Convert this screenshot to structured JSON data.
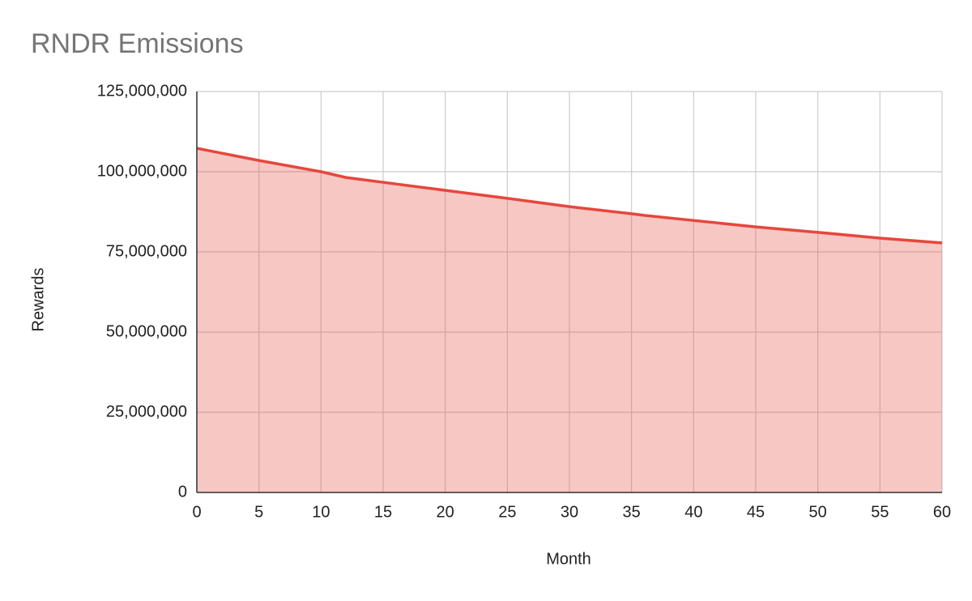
{
  "chart_data": {
    "type": "area",
    "title": "RNDR Emissions",
    "x_label": "Month",
    "y_label": "Rewards",
    "x": [
      0,
      5,
      10,
      12,
      15,
      20,
      25,
      30,
      35,
      36,
      40,
      45,
      50,
      55,
      60
    ],
    "series": [
      {
        "name": "Rewards",
        "color": "#e5473d",
        "values": [
          107300000,
          103500000,
          100000000,
          98200000,
          96700000,
          94200000,
          91700000,
          89100000,
          86900000,
          86400000,
          84800000,
          82800000,
          81100000,
          79300000,
          77800000
        ]
      }
    ],
    "xlim": [
      0,
      60
    ],
    "xticks": [
      0,
      5,
      10,
      15,
      20,
      25,
      30,
      35,
      40,
      45,
      50,
      55,
      60
    ],
    "ylim": [
      0,
      125000000
    ],
    "yticks": [
      0,
      {
        "value": 25000000,
        "label": "25,000,000"
      },
      {
        "value": 50000000,
        "label": "50,000,000"
      },
      {
        "value": 75000000,
        "label": "75,000,000"
      },
      {
        "value": 100000000,
        "label": "100,000,000"
      },
      {
        "value": 125000000,
        "label": "125,000,000"
      }
    ],
    "grid": true
  }
}
